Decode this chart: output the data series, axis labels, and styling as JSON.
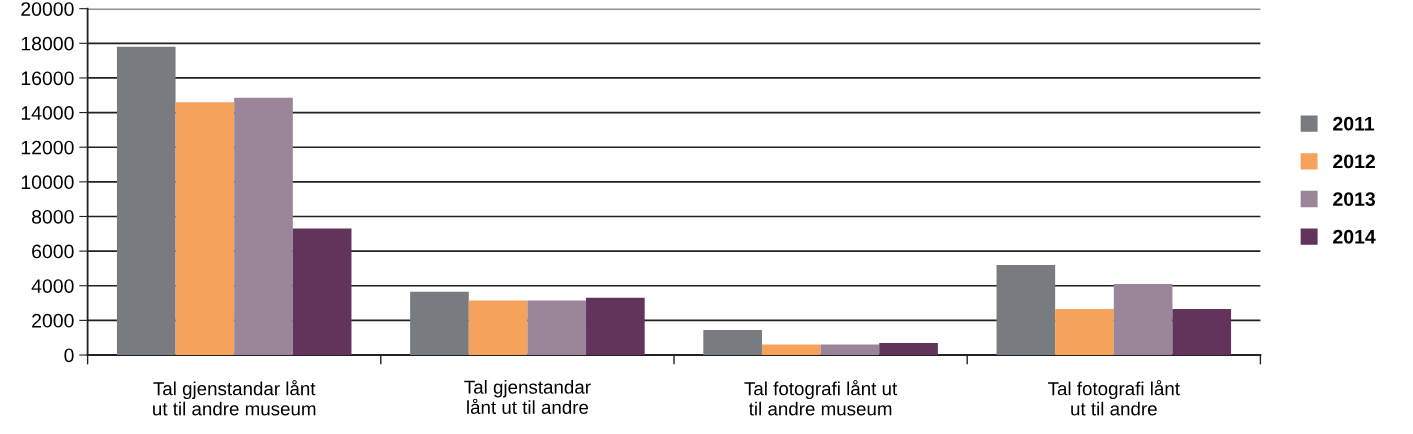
{
  "chart_data": {
    "type": "bar",
    "categories": [
      "Tal gjenstandar lånt\nut til andre museum",
      "Tal gjenstandar\nlånt ut til andre",
      "Tal fotografi lånt ut\ntil andre museum",
      "Tal fotografi lånt\nut til andre"
    ],
    "series": [
      {
        "name": "2011",
        "color": "#787c80",
        "values": [
          17800,
          3650,
          1450,
          5200
        ]
      },
      {
        "name": "2012",
        "color": "#f5a35c",
        "values": [
          14600,
          3150,
          600,
          2650
        ]
      },
      {
        "name": "2013",
        "color": "#9a8599",
        "values": [
          14850,
          3150,
          600,
          4100
        ]
      },
      {
        "name": "2014",
        "color": "#62345c",
        "values": [
          7300,
          3300,
          700,
          2650
        ]
      }
    ],
    "ylim": [
      0,
      20000
    ],
    "yticks": [
      0,
      2000,
      4000,
      6000,
      8000,
      10000,
      12000,
      14000,
      16000,
      18000,
      20000
    ],
    "grid": "y",
    "legend": "right"
  }
}
